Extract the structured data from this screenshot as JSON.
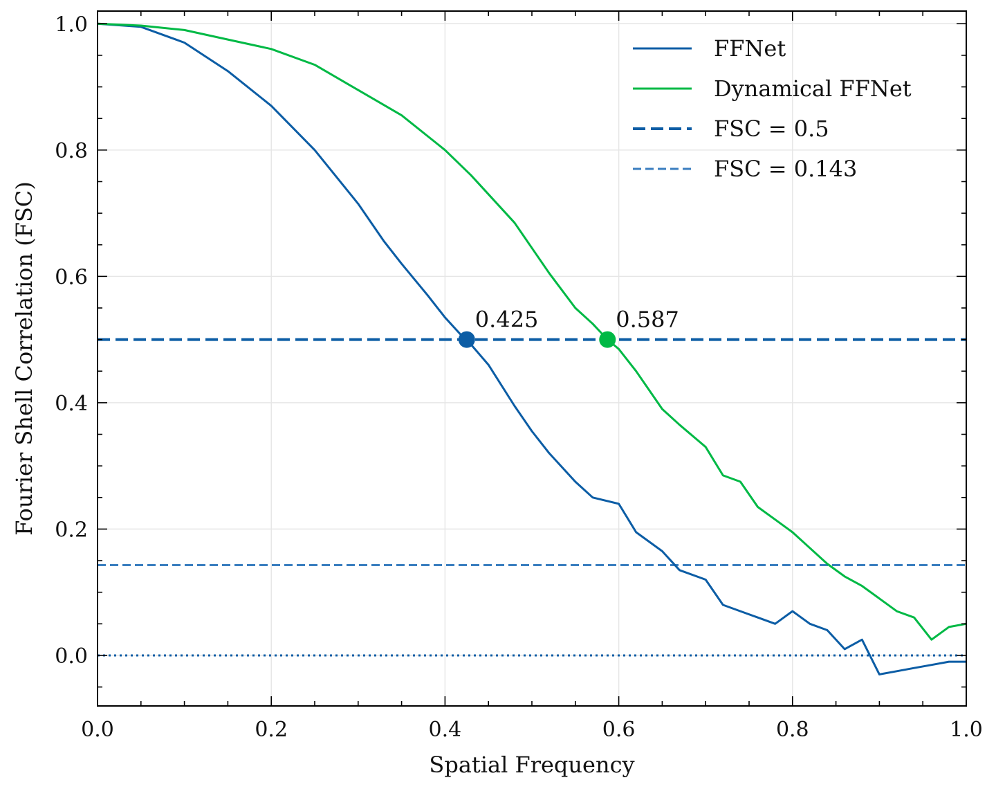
{
  "chart_data": {
    "type": "line",
    "xlabel": "Spatial Frequency",
    "ylabel": "Fourier Shell Correlation (FSC)",
    "xlim": [
      0.0,
      1.0
    ],
    "ylim": [
      -0.08,
      1.02
    ],
    "grid": true,
    "legend_position": "top-right",
    "x_ticks": [
      "0.0",
      "0.2",
      "0.4",
      "0.6",
      "0.8",
      "1.0"
    ],
    "y_ticks": [
      "0.0",
      "0.2",
      "0.4",
      "0.6",
      "0.8",
      "1.0"
    ],
    "x_tick_values": [
      0.0,
      0.2,
      0.4,
      0.6,
      0.8,
      1.0
    ],
    "y_tick_values": [
      0.0,
      0.2,
      0.4,
      0.6,
      0.8,
      1.0
    ],
    "series": [
      {
        "name": "FFNet",
        "color": "#0c5da5",
        "style": "solid",
        "points": [
          [
            0.0,
            1.0
          ],
          [
            0.05,
            0.995
          ],
          [
            0.1,
            0.97
          ],
          [
            0.15,
            0.925
          ],
          [
            0.2,
            0.87
          ],
          [
            0.25,
            0.8
          ],
          [
            0.3,
            0.715
          ],
          [
            0.33,
            0.655
          ],
          [
            0.35,
            0.62
          ],
          [
            0.38,
            0.57
          ],
          [
            0.4,
            0.535
          ],
          [
            0.42,
            0.505
          ],
          [
            0.425,
            0.5
          ],
          [
            0.45,
            0.46
          ],
          [
            0.48,
            0.395
          ],
          [
            0.5,
            0.355
          ],
          [
            0.52,
            0.32
          ],
          [
            0.55,
            0.275
          ],
          [
            0.57,
            0.25
          ],
          [
            0.6,
            0.24
          ],
          [
            0.62,
            0.195
          ],
          [
            0.65,
            0.165
          ],
          [
            0.67,
            0.135
          ],
          [
            0.7,
            0.12
          ],
          [
            0.72,
            0.08
          ],
          [
            0.74,
            0.07
          ],
          [
            0.76,
            0.06
          ],
          [
            0.78,
            0.05
          ],
          [
            0.8,
            0.07
          ],
          [
            0.82,
            0.05
          ],
          [
            0.84,
            0.04
          ],
          [
            0.86,
            0.01
          ],
          [
            0.88,
            0.025
          ],
          [
            0.9,
            -0.03
          ],
          [
            0.92,
            -0.025
          ],
          [
            0.94,
            -0.02
          ],
          [
            0.96,
            -0.015
          ],
          [
            0.98,
            -0.01
          ],
          [
            1.0,
            -0.01
          ]
        ]
      },
      {
        "name": "Dynamical FFNet",
        "color": "#00b945",
        "style": "solid",
        "points": [
          [
            0.0,
            1.0
          ],
          [
            0.05,
            0.997
          ],
          [
            0.1,
            0.99
          ],
          [
            0.15,
            0.975
          ],
          [
            0.2,
            0.96
          ],
          [
            0.25,
            0.935
          ],
          [
            0.3,
            0.895
          ],
          [
            0.35,
            0.855
          ],
          [
            0.4,
            0.8
          ],
          [
            0.43,
            0.76
          ],
          [
            0.45,
            0.73
          ],
          [
            0.48,
            0.685
          ],
          [
            0.5,
            0.645
          ],
          [
            0.52,
            0.605
          ],
          [
            0.55,
            0.55
          ],
          [
            0.57,
            0.525
          ],
          [
            0.587,
            0.5
          ],
          [
            0.6,
            0.485
          ],
          [
            0.62,
            0.45
          ],
          [
            0.65,
            0.39
          ],
          [
            0.67,
            0.365
          ],
          [
            0.7,
            0.33
          ],
          [
            0.72,
            0.285
          ],
          [
            0.74,
            0.275
          ],
          [
            0.76,
            0.235
          ],
          [
            0.78,
            0.215
          ],
          [
            0.8,
            0.195
          ],
          [
            0.82,
            0.17
          ],
          [
            0.84,
            0.145
          ],
          [
            0.86,
            0.125
          ],
          [
            0.88,
            0.11
          ],
          [
            0.9,
            0.09
          ],
          [
            0.92,
            0.07
          ],
          [
            0.94,
            0.06
          ],
          [
            0.96,
            0.025
          ],
          [
            0.98,
            0.045
          ],
          [
            1.0,
            0.05
          ]
        ]
      },
      {
        "name": "FSC = 0.5",
        "color": "#0c5da5",
        "style": "dashed-thick",
        "points": [
          [
            0.0,
            0.5
          ],
          [
            1.0,
            0.5
          ]
        ]
      },
      {
        "name": "FSC = 0.143",
        "color": "#3a7ebf",
        "style": "dashed",
        "points": [
          [
            0.0,
            0.143
          ],
          [
            1.0,
            0.143
          ]
        ]
      }
    ],
    "zero_line": {
      "y": 0.0,
      "color": "#0c5da5",
      "style": "dotted"
    },
    "annotations": [
      {
        "text": "0.425",
        "x": 0.425,
        "y": 0.5,
        "color": "#0c5da5"
      },
      {
        "text": "0.587",
        "x": 0.587,
        "y": 0.5,
        "color": "#00b945"
      }
    ]
  }
}
